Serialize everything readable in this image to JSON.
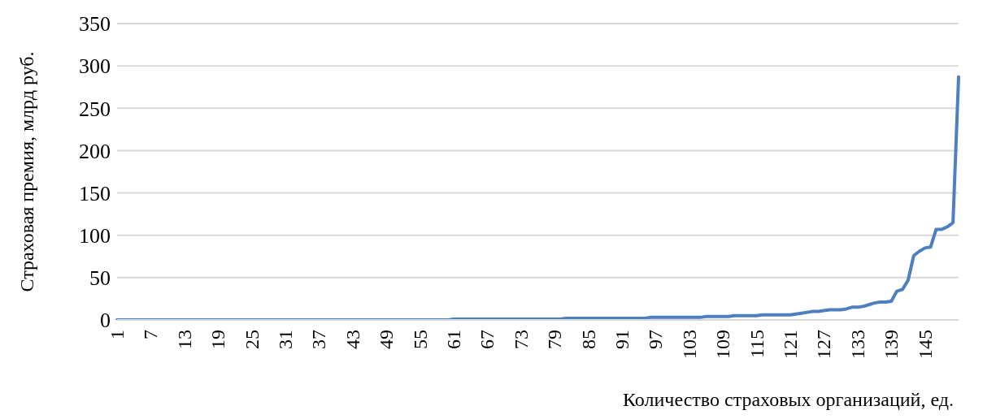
{
  "chart_data": {
    "type": "line",
    "xlabel": "Количество страховых организаций, ед.",
    "ylabel": "Страховая премия, млрд руб.",
    "categories": [
      "1",
      null,
      null,
      null,
      null,
      null,
      "7",
      null,
      null,
      null,
      null,
      null,
      "13",
      null,
      null,
      null,
      null,
      null,
      "19",
      null,
      null,
      null,
      null,
      null,
      "25",
      null,
      null,
      null,
      null,
      null,
      "31",
      null,
      null,
      null,
      null,
      null,
      "37",
      null,
      null,
      null,
      null,
      null,
      "43",
      null,
      null,
      null,
      null,
      null,
      "49",
      null,
      null,
      null,
      null,
      null,
      "55",
      null,
      null,
      null,
      null,
      null,
      "61",
      null,
      null,
      null,
      null,
      null,
      "67",
      null,
      null,
      null,
      null,
      null,
      "73",
      null,
      null,
      null,
      null,
      null,
      "79",
      null,
      null,
      null,
      null,
      null,
      "85",
      null,
      null,
      null,
      null,
      null,
      "91",
      null,
      null,
      null,
      null,
      null,
      "97",
      null,
      null,
      null,
      null,
      null,
      "103",
      null,
      null,
      null,
      null,
      null,
      "109",
      null,
      null,
      null,
      null,
      null,
      "115",
      null,
      null,
      null,
      null,
      null,
      "121",
      null,
      null,
      null,
      null,
      null,
      "127",
      null,
      null,
      null,
      null,
      null,
      "133",
      null,
      null,
      null,
      null,
      null,
      "139",
      null,
      null,
      null,
      null,
      null,
      "145",
      null,
      null,
      null,
      null,
      null,
      null
    ],
    "series": [
      {
        "color": "#4e7fbf",
        "values": [
          0,
          0,
          0,
          0,
          0,
          0,
          0,
          0,
          0,
          0,
          0,
          0,
          0,
          0,
          0,
          0,
          0,
          0,
          0,
          0,
          0,
          0,
          0,
          0,
          0,
          0,
          0,
          0,
          0,
          0,
          0,
          0,
          0,
          0,
          0,
          0,
          0,
          0,
          0,
          0,
          0,
          0,
          0,
          0,
          0,
          0,
          0,
          0,
          0,
          0,
          0,
          0,
          0,
          0,
          0,
          0,
          0,
          0,
          0,
          0,
          1,
          1,
          1,
          1,
          1,
          1,
          1,
          1,
          1,
          1,
          1,
          1,
          1,
          1,
          1,
          1,
          1,
          1,
          1,
          1,
          2,
          2,
          2,
          2,
          2,
          2,
          2,
          2,
          2,
          2,
          2,
          2,
          2,
          2,
          2,
          3,
          3,
          3,
          3,
          3,
          3,
          3,
          3,
          3,
          3,
          4,
          4,
          4,
          4,
          4,
          5,
          5,
          5,
          5,
          5,
          6,
          6,
          6,
          6,
          6,
          6,
          7,
          8,
          9,
          10,
          10,
          11,
          12,
          12,
          12,
          13,
          15,
          15,
          16,
          18,
          20,
          21,
          21,
          22,
          34,
          36,
          47,
          76,
          81,
          85,
          86,
          107,
          107,
          110,
          115,
          287
        ]
      }
    ],
    "ylim": [
      0,
      350
    ],
    "yticks": [
      0,
      50,
      100,
      150,
      200,
      250,
      300,
      350
    ],
    "grid": "y",
    "legend": false,
    "marker": "none",
    "line_style": "solid"
  }
}
